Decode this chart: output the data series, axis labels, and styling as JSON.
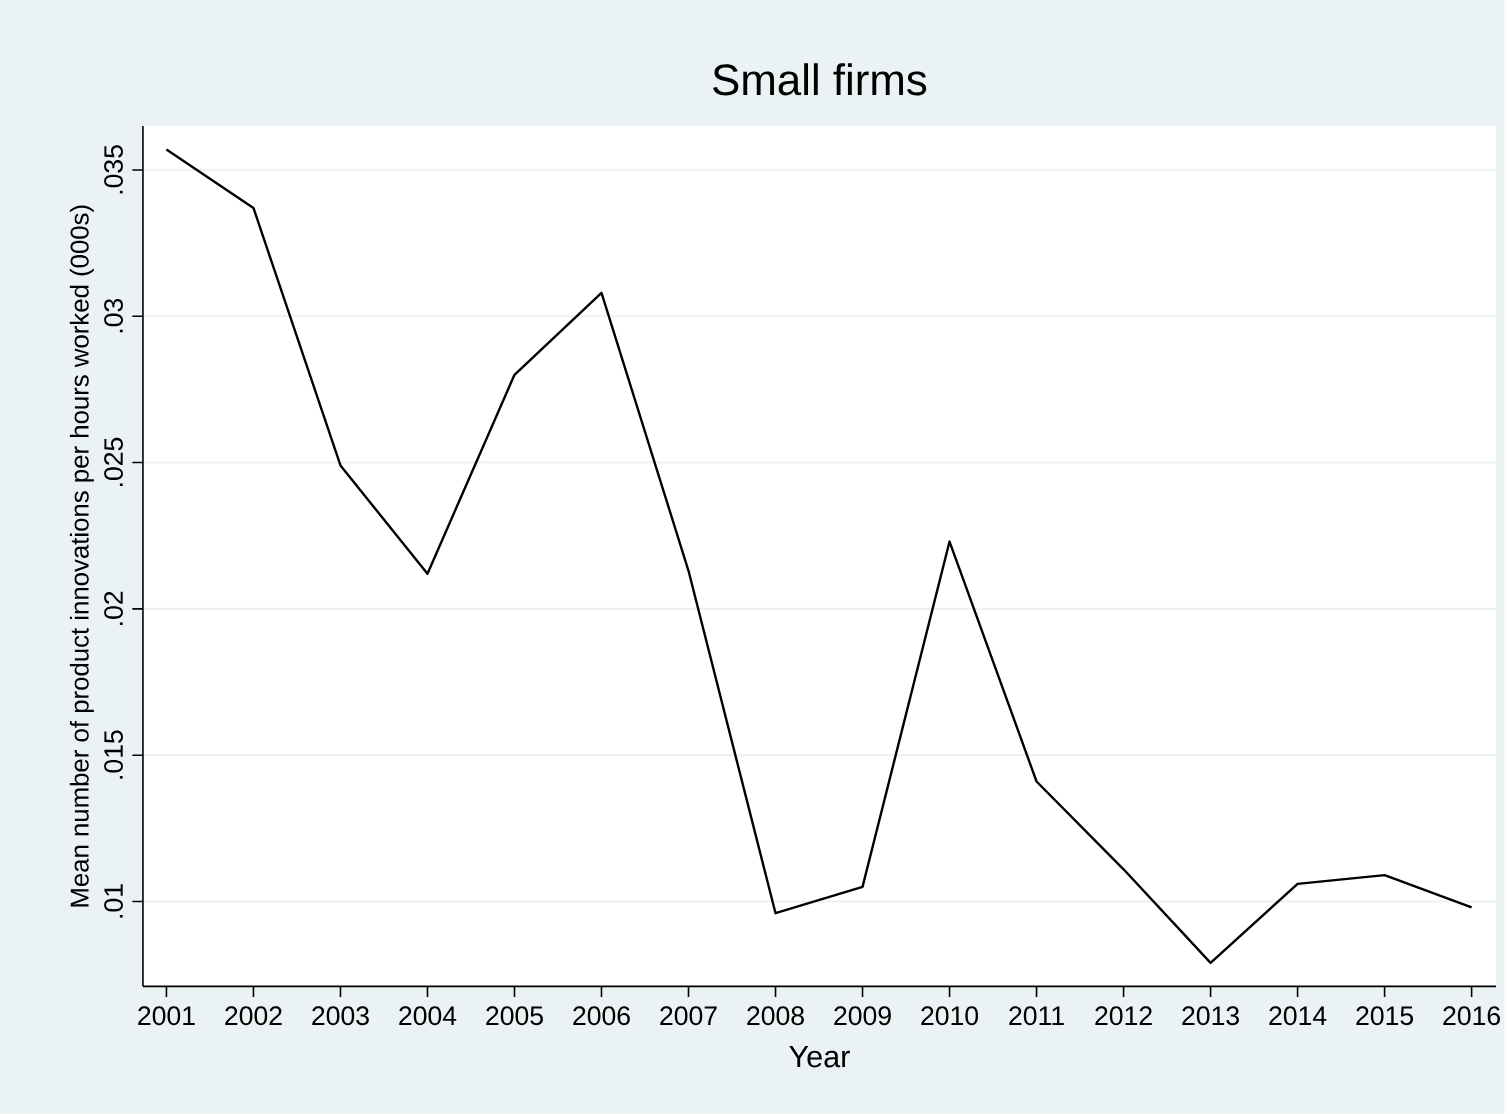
{
  "chart_data": {
    "type": "line",
    "title": "Small firms",
    "xlabel": "Year",
    "ylabel": "Mean number of product innovations per hours worked (000s)",
    "x": [
      2001,
      2002,
      2003,
      2004,
      2005,
      2006,
      2007,
      2008,
      2009,
      2010,
      2011,
      2012,
      2013,
      2014,
      2015,
      2016
    ],
    "series": [
      {
        "color": "#000000",
        "values": [
          0.0357,
          0.0337,
          0.0249,
          0.0212,
          0.028,
          0.0308,
          0.0213,
          0.0096,
          0.0105,
          0.0223,
          0.0141,
          0.0111,
          0.0079,
          0.0106,
          0.0109,
          0.0098
        ]
      }
    ],
    "xlim": [
      2000.73,
      2016.28
    ],
    "ylim": [
      0.0071,
      0.0365
    ],
    "xticks": [
      2001,
      2002,
      2003,
      2004,
      2005,
      2006,
      2007,
      2008,
      2009,
      2010,
      2011,
      2012,
      2013,
      2014,
      2015,
      2016
    ],
    "yticks": [
      {
        "value": 0.01,
        "label": ".01"
      },
      {
        "value": 0.015,
        "label": ".015"
      },
      {
        "value": 0.02,
        "label": ".02"
      },
      {
        "value": 0.025,
        "label": ".025"
      },
      {
        "value": 0.03,
        "label": ".03"
      },
      {
        "value": 0.035,
        "label": ".035"
      }
    ],
    "grid": "y",
    "marker": "none",
    "line_style": "solid"
  }
}
